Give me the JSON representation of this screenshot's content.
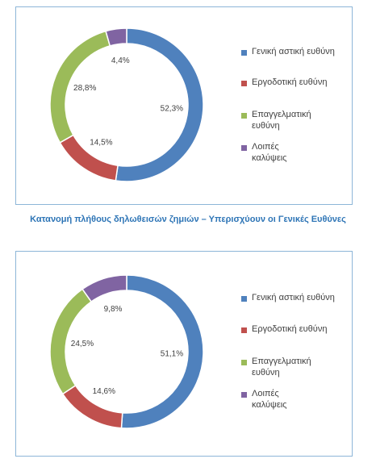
{
  "caption": "Κατανομή πλήθους δηλωθεισών ζημιών – Υπερισχύουν οι Γενικές Ευθύνες",
  "colors": [
    "#4f81bd",
    "#c0504d",
    "#9bbb59",
    "#8064a2"
  ],
  "chart_data": [
    {
      "type": "pie",
      "donut": true,
      "categories": [
        "Γενική αστική ευθύνη",
        "Εργοδοτική ευθύνη",
        "Επαγγελματική ευθύνη",
        "Λοιπές καλύψεις"
      ],
      "legend_labels": [
        [
          "Γενική αστική ευθύνη"
        ],
        [
          "Εργοδοτική ευθύνη"
        ],
        [
          "Επαγγελματική",
          "ευθύνη"
        ],
        [
          "Λοιπές",
          "καλύψεις"
        ]
      ],
      "values": [
        52.3,
        14.5,
        28.8,
        4.4
      ],
      "data_labels": [
        "52,3%",
        "14,5%",
        "28,8%",
        "4,4%"
      ],
      "unit": "%",
      "legend_position": "right"
    },
    {
      "type": "pie",
      "donut": true,
      "categories": [
        "Γενική αστική ευθύνη",
        "Εργοδοτική ευθύνη",
        "Επαγγελματική ευθύνη",
        "Λοιπές καλύψεις"
      ],
      "legend_labels": [
        [
          "Γενική αστική ευθύνη"
        ],
        [
          "Εργοδοτική ευθύνη"
        ],
        [
          "Επαγγελματική",
          "ευθύνη"
        ],
        [
          "Λοιπές",
          "καλύψεις"
        ]
      ],
      "values": [
        51.1,
        14.6,
        24.5,
        9.8
      ],
      "data_labels": [
        "51,1%",
        "14,6%",
        "24,5%",
        "9,8%"
      ],
      "unit": "%",
      "legend_position": "right"
    }
  ]
}
